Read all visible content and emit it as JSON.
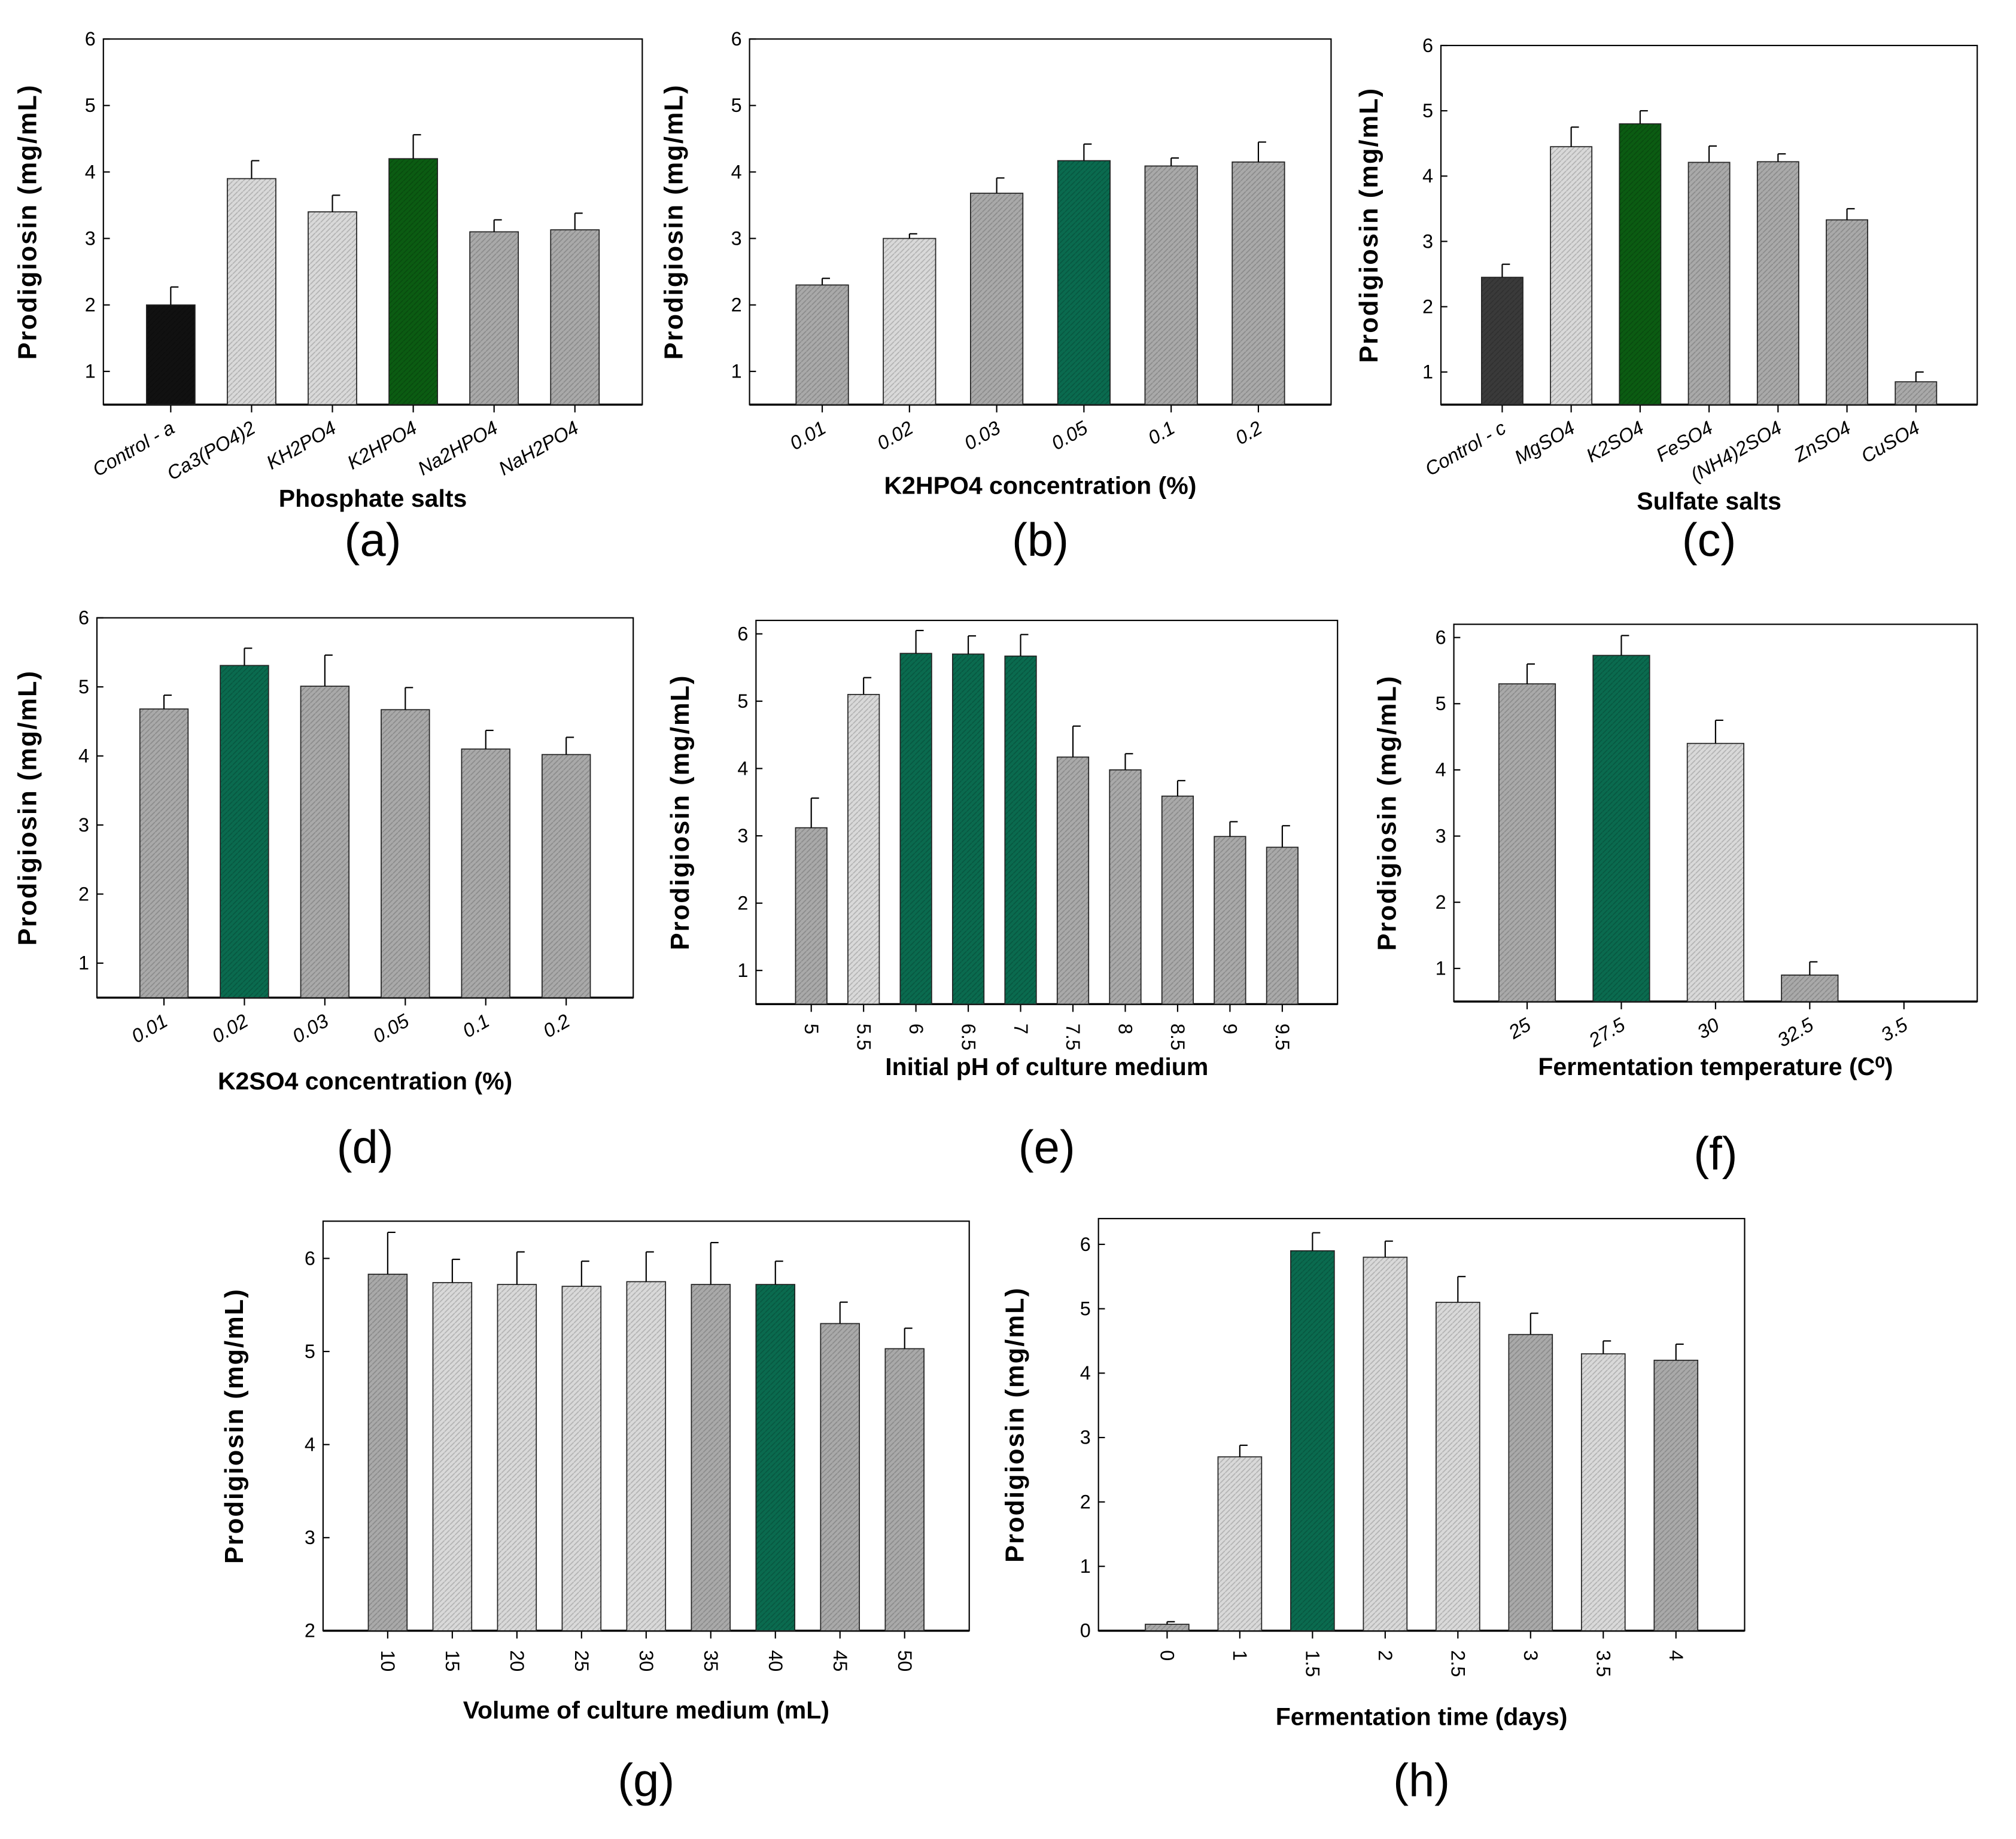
{
  "colors": {
    "green_dark": "#0b5c12",
    "green_teal": "#0a6b4f",
    "light": "#d9d9d9",
    "mid": "#a9a9a9",
    "dark": "#3a3a3a",
    "black": "#111111"
  },
  "chart_data": [
    {
      "id": "a",
      "type": "bar",
      "panel_label": "(a)",
      "xlabel": "Phosphate salts",
      "ylabel": "Prodigiosin (mg/mL)",
      "ylim": [
        0.5,
        6
      ],
      "yticks": [
        "1",
        "2",
        "3",
        "4",
        "5",
        "6"
      ],
      "categories": [
        "Control - a",
        "Ca3(PO4)2",
        "KH2PO4",
        "K2HPO4",
        "Na2HPO4",
        "NaH2PO4"
      ],
      "values": [
        2.0,
        3.9,
        3.4,
        4.2,
        3.1,
        3.13
      ],
      "errors": [
        0.27,
        0.27,
        0.25,
        0.36,
        0.18,
        0.25
      ],
      "fills": [
        "black",
        "light",
        "light",
        "green_dark",
        "mid",
        "mid"
      ]
    },
    {
      "id": "b",
      "type": "bar",
      "panel_label": "(b)",
      "xlabel": "K2HPO4 concentration (%)",
      "ylabel": "Prodigiosin (mg/mL)",
      "ylim": [
        0.5,
        6
      ],
      "yticks": [
        "1",
        "2",
        "3",
        "4",
        "5",
        "6"
      ],
      "categories": [
        "0.01",
        "0.02",
        "0.03",
        "0.05",
        "0.1",
        "0.2"
      ],
      "values": [
        2.3,
        3.0,
        3.68,
        4.17,
        4.09,
        4.15
      ],
      "errors": [
        0.1,
        0.07,
        0.23,
        0.25,
        0.12,
        0.3
      ],
      "fills": [
        "mid",
        "light",
        "mid",
        "green_teal",
        "mid",
        "mid"
      ]
    },
    {
      "id": "c",
      "type": "bar",
      "panel_label": "(c)",
      "xlabel": "Sulfate salts",
      "ylabel": "Prodigiosin (mg/mL)",
      "ylim": [
        0.5,
        6
      ],
      "yticks": [
        "1",
        "2",
        "3",
        "4",
        "5",
        "6"
      ],
      "categories": [
        "Control - c",
        "MgSO4",
        "K2SO4",
        "FeSO4",
        "(NH4)2SO4",
        "ZnSO4",
        "CuSO4"
      ],
      "values": [
        2.45,
        4.45,
        4.8,
        4.21,
        4.22,
        3.33,
        0.85
      ],
      "errors": [
        0.2,
        0.3,
        0.2,
        0.25,
        0.12,
        0.17,
        0.15
      ],
      "fills": [
        "dark",
        "light",
        "green_dark",
        "mid",
        "mid",
        "mid",
        "mid"
      ]
    },
    {
      "id": "d",
      "type": "bar",
      "panel_label": "(d)",
      "xlabel": "K2SO4 concentration (%)",
      "ylabel": "Prodigiosin (mg/mL)",
      "ylim": [
        0.5,
        6
      ],
      "yticks": [
        "1",
        "2",
        "3",
        "4",
        "5",
        "6"
      ],
      "categories": [
        "0.01",
        "0.02",
        "0.03",
        "0.05",
        "0.1",
        "0.2"
      ],
      "values": [
        4.68,
        5.31,
        5.01,
        4.67,
        4.1,
        4.02
      ],
      "errors": [
        0.2,
        0.25,
        0.45,
        0.32,
        0.27,
        0.25
      ],
      "fills": [
        "mid",
        "green_teal",
        "mid",
        "mid",
        "mid",
        "mid"
      ]
    },
    {
      "id": "e",
      "type": "bar",
      "panel_label": "(e)",
      "xlabel": "Initial pH of culture medium",
      "ylabel": "Prodigiosin (mg/mL)",
      "ylim": [
        0.5,
        6.2
      ],
      "yticks": [
        "1",
        "2",
        "3",
        "4",
        "5",
        "6"
      ],
      "categories": [
        "5",
        "5.5",
        "6",
        "6.5",
        "7",
        "7.5",
        "8",
        "8.5",
        "9",
        "9.5"
      ],
      "values": [
        3.12,
        5.1,
        5.71,
        5.7,
        5.67,
        4.17,
        3.98,
        3.59,
        2.99,
        2.83
      ],
      "errors": [
        0.44,
        0.25,
        0.34,
        0.27,
        0.32,
        0.46,
        0.24,
        0.23,
        0.22,
        0.32
      ],
      "fills": [
        "mid",
        "light",
        "green_teal",
        "green_teal",
        "green_teal",
        "mid",
        "mid",
        "mid",
        "mid",
        "mid"
      ]
    },
    {
      "id": "f",
      "type": "bar",
      "panel_label": "(f)",
      "xlabel": "Fermentation temperature (C⁰)",
      "ylabel": "Prodigiosin (mg/mL)",
      "ylim": [
        0.5,
        6.2
      ],
      "yticks": [
        "1",
        "2",
        "3",
        "4",
        "5",
        "6"
      ],
      "categories": [
        "25",
        "27.5",
        "30",
        "32.5",
        "3.5"
      ],
      "values": [
        5.3,
        5.73,
        4.4,
        0.9,
        null
      ],
      "errors": [
        0.3,
        0.3,
        0.35,
        0.2,
        null
      ],
      "fills": [
        "mid",
        "green_teal",
        "light",
        "mid",
        "mid"
      ]
    },
    {
      "id": "g",
      "type": "bar",
      "panel_label": "(g)",
      "xlabel": "Volume of culture medium (mL)",
      "ylabel": "Prodigiosin (mg/mL)",
      "ylim": [
        2,
        6.4
      ],
      "yticks": [
        "2",
        "3",
        "4",
        "5",
        "6"
      ],
      "categories": [
        "10",
        "15",
        "20",
        "25",
        "30",
        "35",
        "40",
        "45",
        "50"
      ],
      "values": [
        5.83,
        5.74,
        5.72,
        5.7,
        5.75,
        5.72,
        5.72,
        5.3,
        5.03
      ],
      "errors": [
        0.45,
        0.25,
        0.35,
        0.27,
        0.32,
        0.45,
        0.25,
        0.23,
        0.22
      ],
      "fills": [
        "mid",
        "light",
        "light",
        "light",
        "light",
        "mid",
        "green_teal",
        "mid",
        "mid"
      ]
    },
    {
      "id": "h",
      "type": "bar",
      "panel_label": "(h)",
      "xlabel": "Fermentation time (days)",
      "ylabel": "Prodigiosin (mg/mL)",
      "ylim": [
        0,
        6.4
      ],
      "yticks": [
        "0",
        "1",
        "2",
        "3",
        "4",
        "5",
        "6"
      ],
      "categories": [
        "0",
        "1",
        "1.5",
        "2",
        "2.5",
        "3",
        "3.5",
        "4"
      ],
      "values": [
        0.1,
        2.7,
        5.9,
        5.8,
        5.1,
        4.6,
        4.3,
        4.2
      ],
      "errors": [
        0.04,
        0.18,
        0.28,
        0.25,
        0.4,
        0.33,
        0.2,
        0.25
      ],
      "fills": [
        "mid",
        "light",
        "green_teal",
        "light",
        "light",
        "mid",
        "light",
        "mid"
      ]
    }
  ]
}
